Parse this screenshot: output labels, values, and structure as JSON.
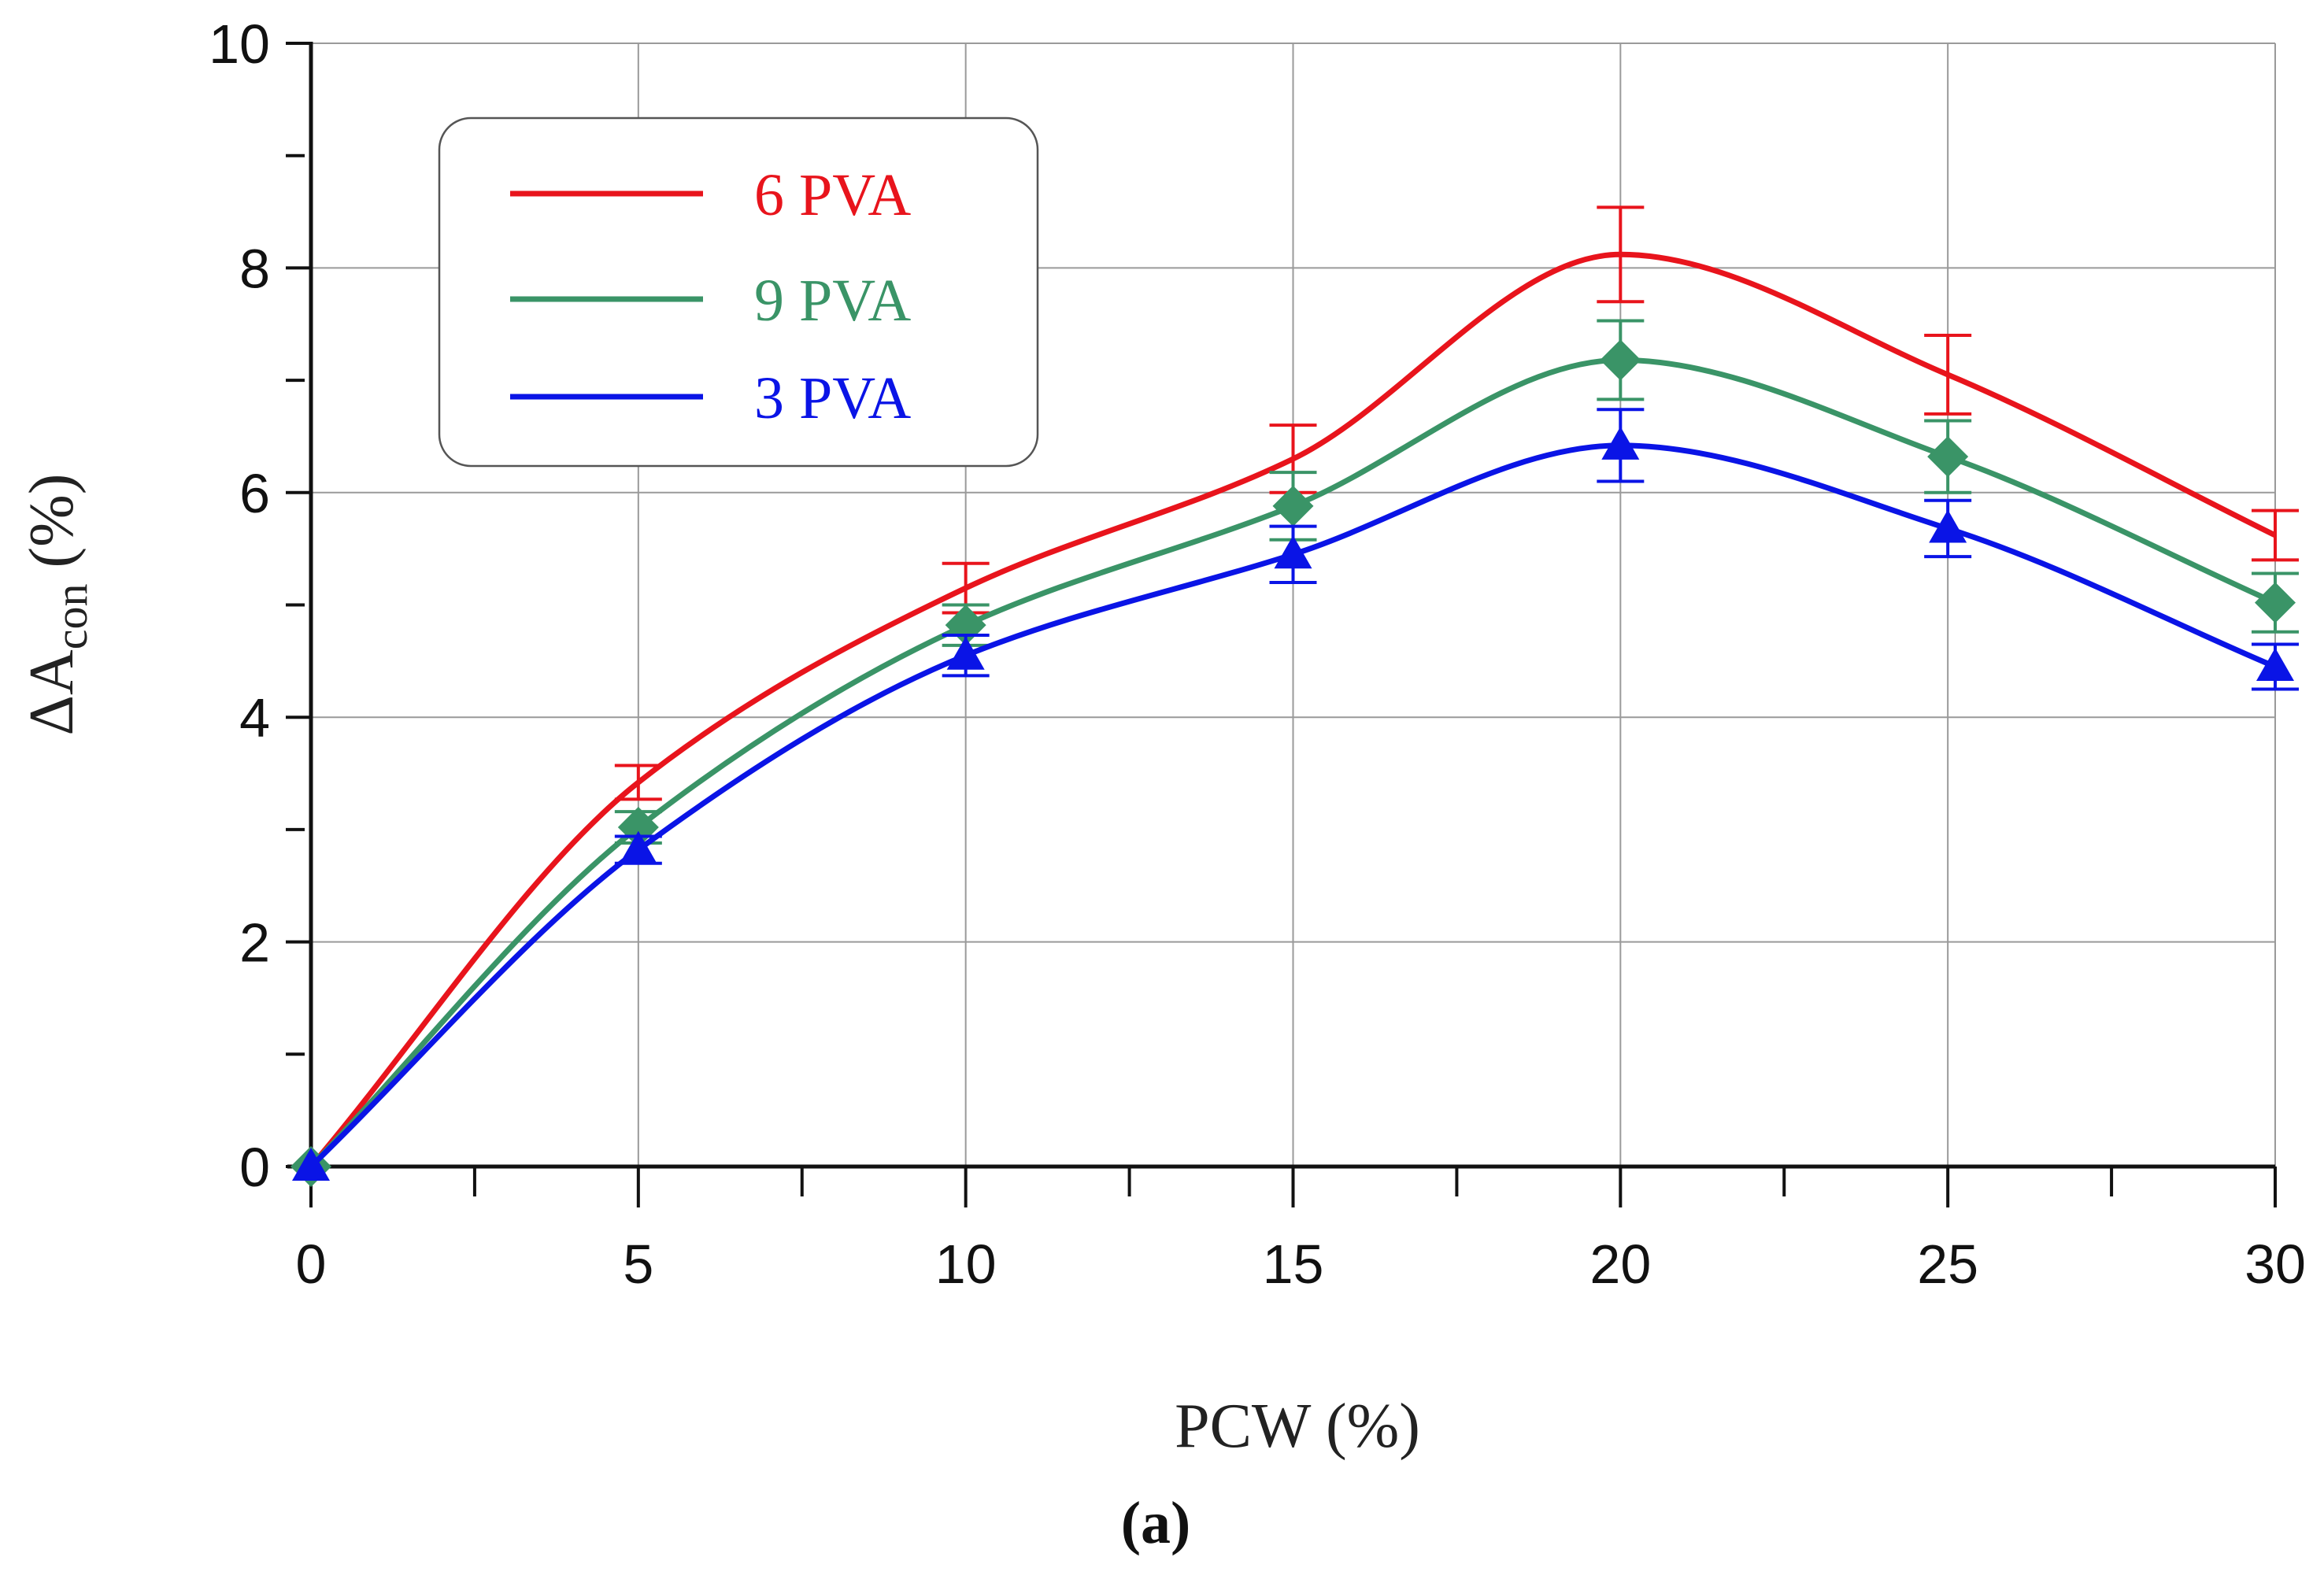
{
  "chart_data": {
    "type": "line",
    "title": "",
    "xlabel": "PCW (%)",
    "ylabel_main": "ΔA",
    "ylabel_sub": "con",
    "ylabel_unit": " (%)",
    "caption": "(a)",
    "xlim": [
      0,
      30
    ],
    "ylim": [
      0,
      10
    ],
    "x_ticks": [
      0,
      5,
      10,
      15,
      20,
      25,
      30
    ],
    "y_ticks": [
      0,
      2,
      4,
      6,
      8,
      10
    ],
    "grid": true,
    "legend_position": "top-left",
    "x": [
      0,
      5,
      10,
      15,
      20,
      25,
      30
    ],
    "series": [
      {
        "name": "6 PVA",
        "color": "#e8141c",
        "marker": "none",
        "values": [
          0,
          3.42,
          5.15,
          6.3,
          8.12,
          7.05,
          5.62
        ],
        "errors": [
          0,
          0.15,
          0.22,
          0.3,
          0.42,
          0.35,
          0.22
        ]
      },
      {
        "name": "9 PVA",
        "color": "#3a9467",
        "marker": "diamond",
        "values": [
          0,
          3.02,
          4.82,
          5.88,
          7.18,
          6.32,
          5.02
        ],
        "errors": [
          0,
          0.14,
          0.18,
          0.3,
          0.35,
          0.32,
          0.26
        ]
      },
      {
        "name": "3 PVA",
        "color": "#0a14e6",
        "marker": "triangle",
        "values": [
          0,
          2.82,
          4.55,
          5.45,
          6.42,
          5.68,
          4.45
        ],
        "errors": [
          0,
          0.12,
          0.18,
          0.25,
          0.32,
          0.25,
          0.2
        ]
      }
    ]
  }
}
